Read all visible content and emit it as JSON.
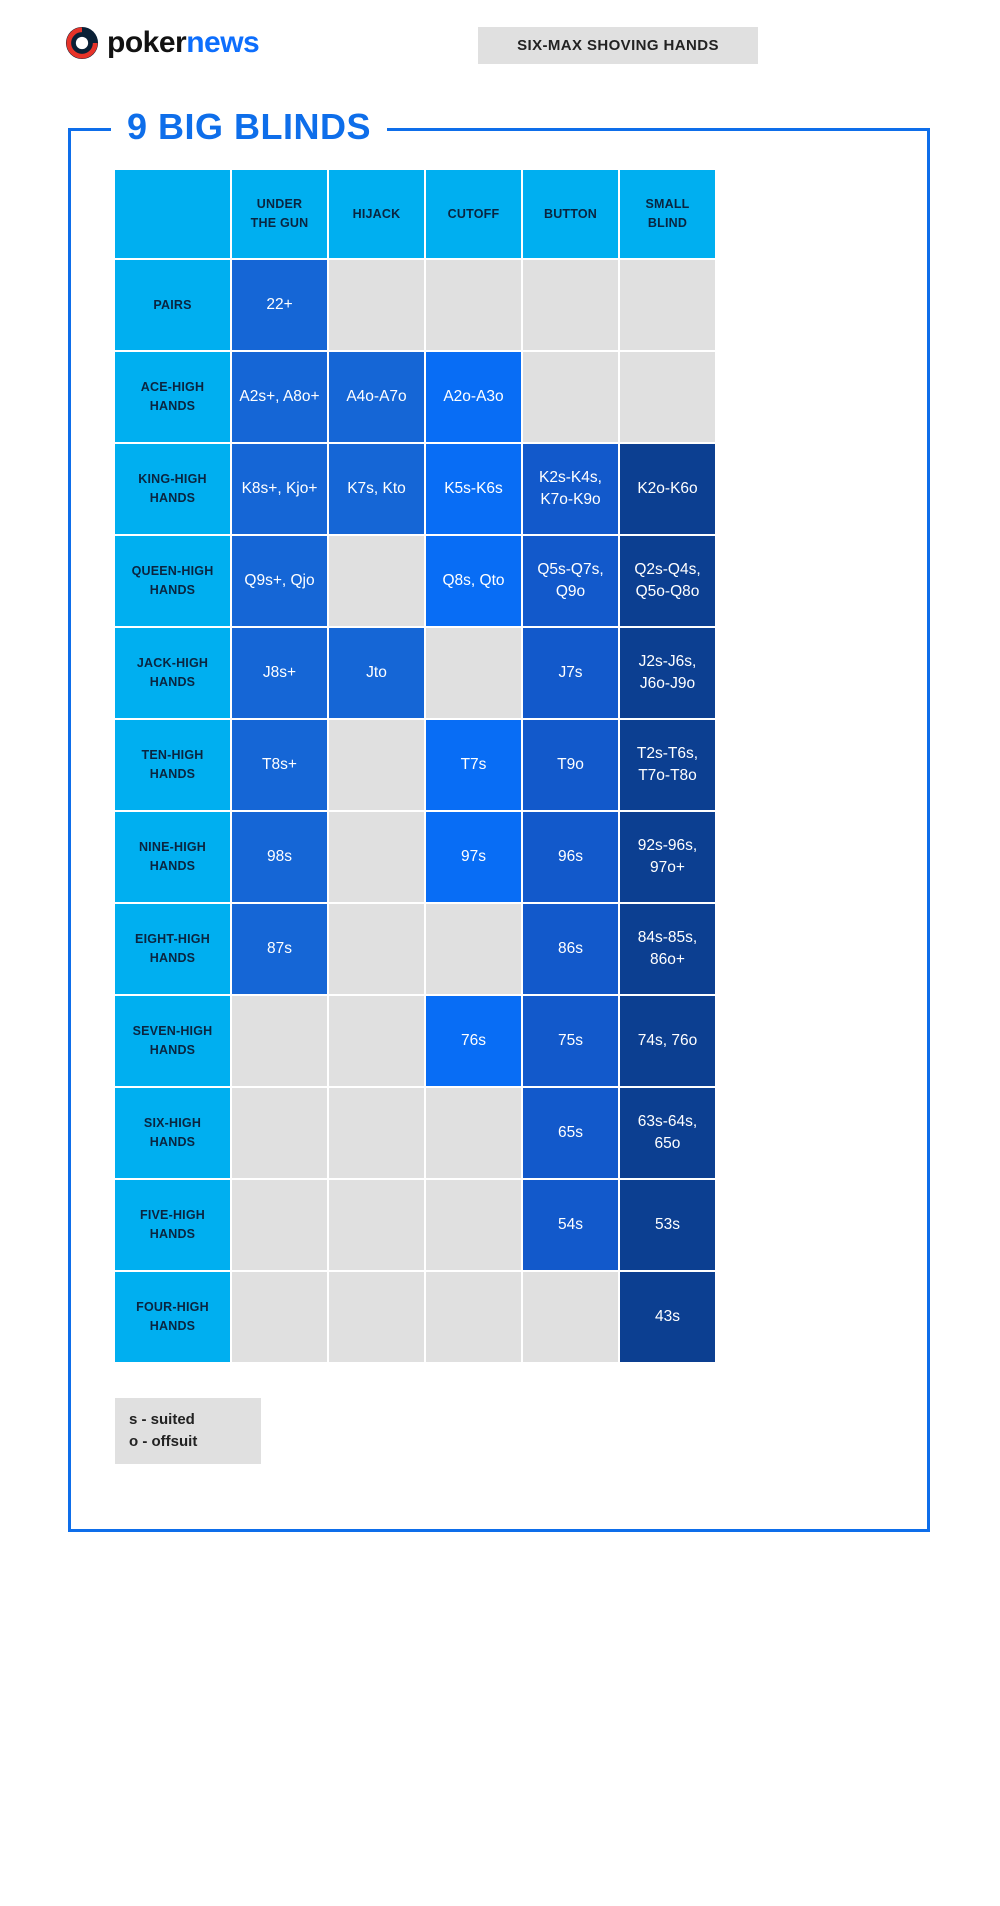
{
  "header": {
    "logo_poker": "poker",
    "logo_news": "news",
    "banner": "SIX-MAX SHOVING HANDS"
  },
  "chart_data": {
    "type": "table",
    "title": "9 BIG BLINDS",
    "columns": [
      "UNDER\nTHE GUN",
      "HIJACK",
      "CUTOFF",
      "BUTTON",
      "SMALL\nBLIND"
    ],
    "rows": [
      {
        "label": "PAIRS",
        "cells": [
          "22+",
          "",
          "",
          "",
          ""
        ]
      },
      {
        "label": "ACE-HIGH\nHANDS",
        "cells": [
          "A2s+, A8o+",
          "A4o-A7o",
          "A2o-A3o",
          "",
          ""
        ]
      },
      {
        "label": "KING-HIGH\nHANDS",
        "cells": [
          "K8s+, Kjo+",
          "K7s, Kto",
          "K5s-K6s",
          "K2s-K4s,\nK7o-K9o",
          "K2o-K6o"
        ]
      },
      {
        "label": "QUEEN-HIGH\nHANDS",
        "cells": [
          "Q9s+, Qjo",
          "",
          "Q8s, Qto",
          "Q5s-Q7s,\nQ9o",
          "Q2s-Q4s,\nQ5o-Q8o"
        ]
      },
      {
        "label": "JACK-HIGH\nHANDS",
        "cells": [
          "J8s+",
          "Jto",
          "",
          "J7s",
          "J2s-J6s,\nJ6o-J9o"
        ]
      },
      {
        "label": "TEN-HIGH\nHANDS",
        "cells": [
          "T8s+",
          "",
          "T7s",
          "T9o",
          "T2s-T6s,\nT7o-T8o"
        ]
      },
      {
        "label": "NINE-HIGH\nHANDS",
        "cells": [
          "98s",
          "",
          "97s",
          "96s",
          "92s-96s,\n97o+"
        ]
      },
      {
        "label": "EIGHT-HIGH\nHANDS",
        "cells": [
          "87s",
          "",
          "",
          "86s",
          "84s-85s,\n86o+"
        ]
      },
      {
        "label": "SEVEN-HIGH\nHANDS",
        "cells": [
          "",
          "",
          "76s",
          "75s",
          "74s, 76o"
        ]
      },
      {
        "label": "SIX-HIGH\nHANDS",
        "cells": [
          "",
          "",
          "",
          "65s",
          "63s-64s,\n65o"
        ]
      },
      {
        "label": "FIVE-HIGH\nHANDS",
        "cells": [
          "",
          "",
          "",
          "54s",
          "53s"
        ]
      },
      {
        "label": "FOUR-HIGH\nHANDS",
        "cells": [
          "",
          "",
          "",
          "",
          "43s"
        ]
      }
    ],
    "legend": [
      "s - suited",
      "o - offsuit"
    ]
  },
  "colors": {
    "brand_cyan": "#00aff0",
    "under_the_gun_blue": "#1566d6",
    "hijack_blue": "#1566d6",
    "cutoff_blue": "#086df5",
    "button_blue": "#1259cb",
    "small_blind_blue": "#0c3f91",
    "empty_gray": "#e0e0e0",
    "frame_blue": "#0e6eea",
    "dark_text": "#0a2540"
  }
}
